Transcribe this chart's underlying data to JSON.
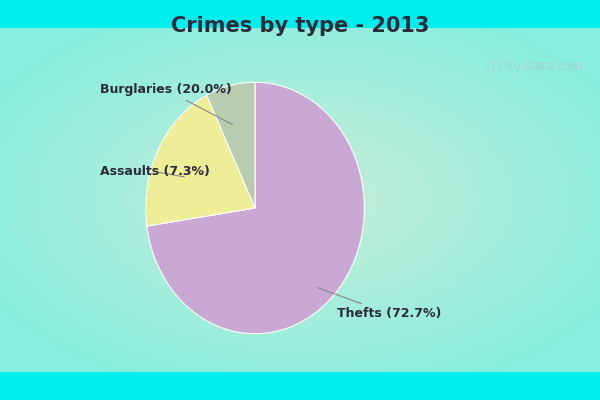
{
  "title": "Crimes by type - 2013",
  "slices": [
    {
      "label": "Thefts (72.7%)",
      "value": 72.7,
      "color": "#C9A8D4"
    },
    {
      "label": "Burglaries (20.0%)",
      "value": 20.0,
      "color": "#EEEE99"
    },
    {
      "label": "Assaults (7.3%)",
      "value": 7.3,
      "color": "#B8CCB0"
    }
  ],
  "bg_outer": "#00EEEE",
  "bg_inner": "#C8EDD8",
  "title_fontsize": 15,
  "label_fontsize": 9,
  "watermark": "ⓘ City-Data.com",
  "startangle": 90,
  "title_color": "#2a2a3a",
  "label_color": "#2a2a3a"
}
